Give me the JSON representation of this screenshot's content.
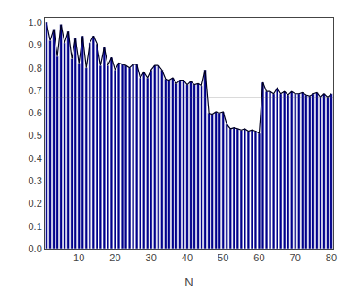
{
  "chart_data": {
    "type": "bar",
    "xlabel": "N",
    "x": [
      1,
      2,
      3,
      4,
      5,
      6,
      7,
      8,
      9,
      10,
      11,
      12,
      13,
      14,
      15,
      16,
      17,
      18,
      19,
      20,
      21,
      22,
      23,
      24,
      25,
      26,
      27,
      28,
      29,
      30,
      31,
      32,
      33,
      34,
      35,
      36,
      37,
      38,
      39,
      40,
      41,
      42,
      43,
      44,
      45,
      46,
      47,
      48,
      49,
      50,
      51,
      52,
      53,
      54,
      55,
      56,
      57,
      58,
      59,
      60,
      61,
      62,
      63,
      64,
      65,
      66,
      67,
      68,
      69,
      70,
      71,
      72,
      73,
      74,
      75,
      76,
      77,
      78,
      79,
      80
    ],
    "series": [
      {
        "type": "bar",
        "color": "#00008B",
        "values": [
          1.0,
          0.92,
          0.97,
          0.85,
          0.99,
          0.91,
          0.96,
          0.84,
          0.93,
          0.82,
          0.94,
          0.8,
          0.91,
          0.94,
          0.905,
          0.81,
          0.89,
          0.81,
          0.845,
          0.79,
          0.82,
          0.815,
          0.81,
          0.8,
          0.815,
          0.815,
          0.755,
          0.78,
          0.755,
          0.79,
          0.81,
          0.81,
          0.79,
          0.75,
          0.745,
          0.755,
          0.73,
          0.745,
          0.745,
          0.725,
          0.74,
          0.725,
          0.73,
          0.72,
          0.79,
          0.6,
          0.595,
          0.605,
          0.6,
          0.605,
          0.55,
          0.53,
          0.535,
          0.53,
          0.525,
          0.53,
          0.52,
          0.525,
          0.52,
          0.51,
          0.735,
          0.695,
          0.695,
          0.685,
          0.71,
          0.685,
          0.695,
          0.68,
          0.695,
          0.685,
          0.685,
          0.69,
          0.68,
          0.675,
          0.685,
          0.69,
          0.67,
          0.685,
          0.67,
          0.685
        ]
      },
      {
        "type": "line",
        "color": "#000020",
        "values": [
          1.0,
          0.92,
          0.97,
          0.85,
          0.99,
          0.91,
          0.96,
          0.84,
          0.93,
          0.82,
          0.94,
          0.8,
          0.91,
          0.94,
          0.905,
          0.81,
          0.89,
          0.81,
          0.845,
          0.79,
          0.82,
          0.815,
          0.81,
          0.8,
          0.815,
          0.815,
          0.755,
          0.78,
          0.755,
          0.79,
          0.81,
          0.81,
          0.79,
          0.75,
          0.745,
          0.755,
          0.73,
          0.745,
          0.745,
          0.725,
          0.74,
          0.725,
          0.73,
          0.72,
          0.79,
          0.6,
          0.595,
          0.605,
          0.6,
          0.605,
          0.55,
          0.53,
          0.535,
          0.53,
          0.525,
          0.53,
          0.52,
          0.525,
          0.52,
          0.51,
          0.735,
          0.695,
          0.695,
          0.685,
          0.71,
          0.685,
          0.695,
          0.68,
          0.695,
          0.685,
          0.685,
          0.69,
          0.68,
          0.675,
          0.685,
          0.69,
          0.67,
          0.685,
          0.67,
          0.685
        ]
      }
    ],
    "reference_line": {
      "y": 0.667,
      "color": "#555555"
    },
    "xlim": [
      0.5,
      80.5
    ],
    "xticks": [
      10,
      20,
      30,
      40,
      50,
      60,
      70,
      80
    ],
    "ylim": [
      0,
      1.02
    ],
    "yticks": [
      {
        "value": 0,
        "label": "0.0"
      },
      0.1,
      0.2,
      0.3,
      0.4,
      0.5,
      0.6,
      0.7,
      0.8,
      0.9,
      {
        "value": 1.0,
        "label": "1.0"
      }
    ],
    "grid": false
  }
}
